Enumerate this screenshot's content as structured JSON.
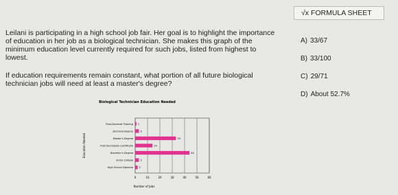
{
  "formula_button": {
    "icon": "√x",
    "label": "FORMULA SHEET"
  },
  "question": {
    "paragraphs": [
      "Leilani is participating in a high school job fair. Her goal is to highlight the importance of education in her job as a biological technician. She makes this graph of the minimum education level currently required for such jobs, listed from highest to lowest.",
      "If education requirements remain constant, what portion of all future biological technician jobs will need at least a master's degree?"
    ]
  },
  "choices": [
    {
      "letter": "A)",
      "text": "33/67"
    },
    {
      "letter": "B)",
      "text": "33/100"
    },
    {
      "letter": "C)",
      "text": "29/71"
    },
    {
      "letter": "D)",
      "text": "About 52.7%"
    }
  ],
  "chart_data": {
    "type": "bar",
    "orientation": "horizontal",
    "title": "Biological Technician Education Needed",
    "x_label": "Number of Jobs",
    "y_label": "Education Needed",
    "categories": [
      "Post-Doctoral Training",
      "Doctoral Degree",
      "Master's Degree",
      "Post-Secondary Certificate",
      "Bachelor's Degree",
      "Some College",
      "High School Diploma"
    ],
    "values": [
      1,
      3,
      33,
      14,
      44,
      3,
      2
    ],
    "color": "#e0338f",
    "xlim": [
      0,
      60
    ],
    "xticks": [
      0,
      10,
      20,
      30,
      40,
      50,
      60
    ],
    "grid": true
  }
}
